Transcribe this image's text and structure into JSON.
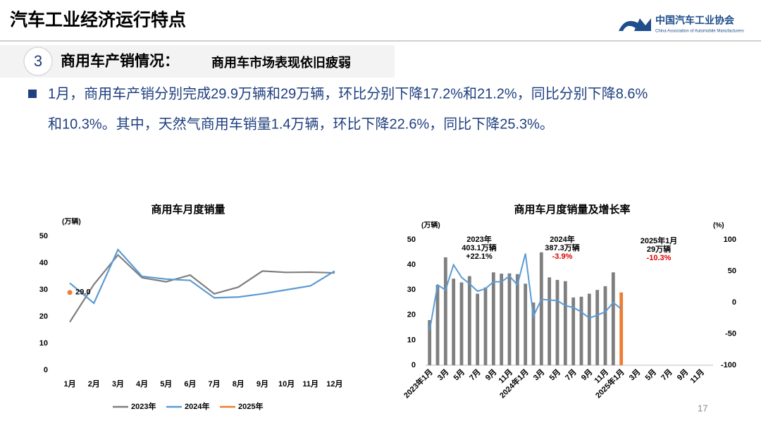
{
  "header": {
    "title": "汽车工业经济运行特点",
    "logo_cn": "中国汽车工业协会",
    "logo_en": "China Association of Automobile Manufacturers",
    "section_number": "3",
    "section_title": "商用车产销情况：",
    "section_subtitle": "商用车市场表现依旧疲弱",
    "paragraph": [
      "1月，商用车产销分别完成29.9万辆和29万辆，环比分别下降17.2%和21.2%，同比分别下降8.6%",
      "和10.3%。其中，天然气商用车销量1.4万辆，环比下降22.6%，同比下降25.3%。"
    ],
    "page_number": "17"
  },
  "chart_data": [
    {
      "type": "line",
      "title": "商用车月度销量",
      "ylabel": "(万辆)",
      "categories": [
        "1月",
        "2月",
        "3月",
        "4月",
        "5月",
        "6月",
        "7月",
        "8月",
        "9月",
        "10月",
        "11月",
        "12月"
      ],
      "series": [
        {
          "name": "2023年",
          "color": "#7f7f7f",
          "values": [
            18,
            32,
            43,
            34.5,
            33,
            35.5,
            28.5,
            31,
            37,
            36.5,
            36.6,
            36.3
          ]
        },
        {
          "name": "2024年",
          "color": "#5b9bd5",
          "values": [
            32.5,
            25,
            45,
            35,
            34,
            33.5,
            27,
            27.3,
            28.5,
            30,
            31.5,
            37
          ]
        },
        {
          "name": "2025年",
          "color": "#ed7d31",
          "values": [
            29.0,
            null,
            null,
            null,
            null,
            null,
            null,
            null,
            null,
            null,
            null,
            null
          ],
          "value_labels": [
            "29.0",
            null,
            null,
            null,
            null,
            null,
            null,
            null,
            null,
            null,
            null,
            null
          ]
        }
      ],
      "ylim": [
        0,
        50
      ],
      "yticks": [
        0,
        10,
        20,
        30,
        40,
        50
      ],
      "legend": "bottom"
    },
    {
      "type": "bar",
      "title": "商用车月度销量及增长率",
      "ylabel": "(万辆)",
      "y2label": "(%)",
      "categories": [
        "2023年1月",
        null,
        "3月",
        null,
        "5月",
        null,
        "7月",
        null,
        "9月",
        null,
        "11月",
        null,
        "2024年1月",
        null,
        "3月",
        null,
        "5月",
        null,
        "7月",
        null,
        "9月",
        null,
        "11月",
        null,
        "2025年1月",
        null,
        "3月",
        null,
        "5月",
        null,
        "7月",
        null,
        "9月",
        null,
        "11月",
        null
      ],
      "series": [
        {
          "type": "bar",
          "color": "#7f7f7f",
          "values": [
            18,
            32,
            43,
            34.5,
            33,
            35.5,
            28.5,
            31,
            37,
            36.5,
            36.6,
            36.3,
            32.5,
            25,
            45,
            35,
            34,
            33.5,
            27,
            27.3,
            28.5,
            30,
            31.5,
            37,
            null,
            null,
            null,
            null,
            null,
            null,
            null,
            null,
            null,
            null,
            null,
            null
          ]
        },
        {
          "type": "bar",
          "color": "#ed7d31",
          "values": [
            null,
            null,
            null,
            null,
            null,
            null,
            null,
            null,
            null,
            null,
            null,
            null,
            null,
            null,
            null,
            null,
            null,
            null,
            null,
            null,
            null,
            null,
            null,
            null,
            29,
            null,
            null,
            null,
            null,
            null,
            null,
            null,
            null,
            null,
            null,
            null
          ]
        },
        {
          "type": "line",
          "axis": "y2",
          "color": "#5b9bd5",
          "values": [
            -45,
            28,
            20,
            60,
            40,
            30,
            18,
            22,
            33,
            33,
            42,
            28,
            78,
            -22,
            5,
            4,
            3,
            -5,
            -8,
            -15,
            -25,
            -20,
            -15,
            0,
            -10.3,
            null,
            null,
            null,
            null,
            null,
            null,
            null,
            null,
            null,
            null,
            null
          ]
        }
      ],
      "ylim": [
        0,
        50
      ],
      "yticks": [
        0,
        10,
        20,
        30,
        40,
        50
      ],
      "y2lim": [
        -100,
        100
      ],
      "y2ticks": [
        -100,
        -50,
        0,
        50,
        100
      ],
      "annotations": [
        [
          "2023年",
          "403.1万辆",
          "+22.1%"
        ],
        [
          "2024年",
          "387.3万辆",
          "-3.9%"
        ],
        [
          "2025年1月",
          "29万辆",
          "-10.3%"
        ]
      ]
    }
  ]
}
